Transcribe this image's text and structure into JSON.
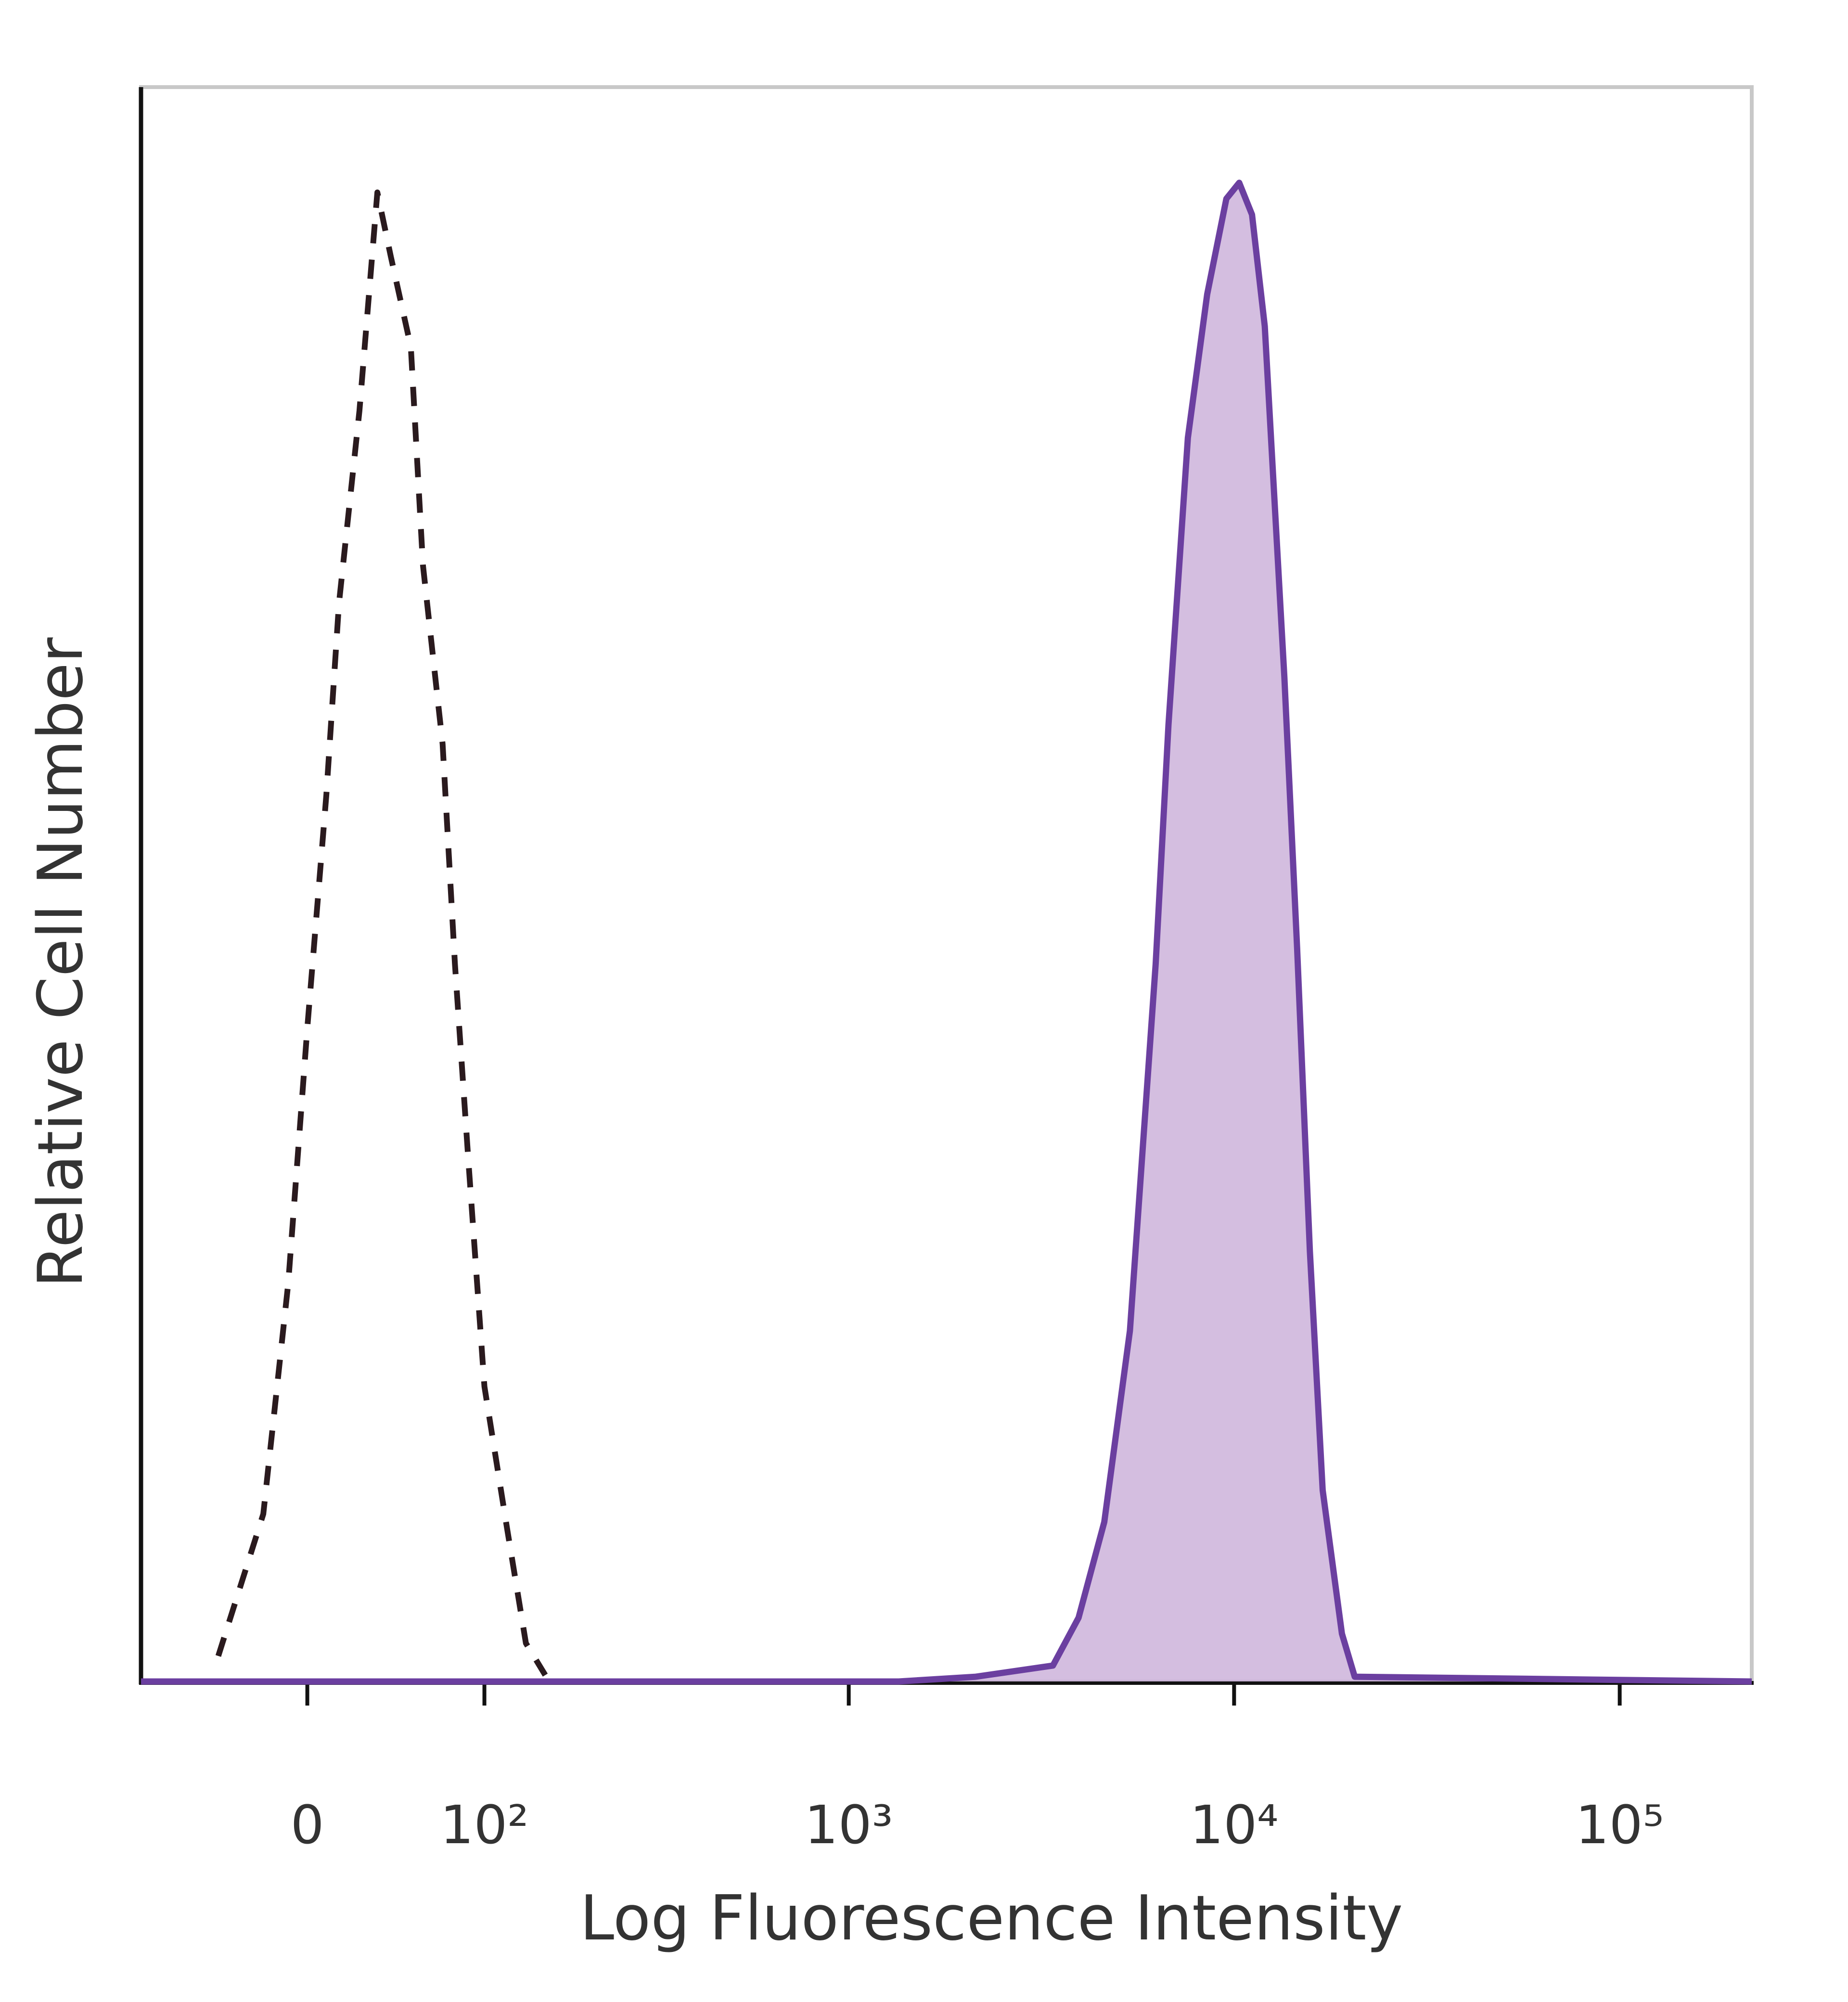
{
  "chart_data": {
    "type": "line",
    "xlabel": "Log Fluorescence Intensity",
    "ylabel": "Relative Cell Number",
    "xscale": "asinh",
    "xlim": [
      -92,
      220000
    ],
    "ylim": [
      0,
      100
    ],
    "xticks": [
      0,
      {
        "value": 100,
        "label": "10²"
      },
      {
        "value": 1000,
        "label": "10³"
      },
      {
        "value": 10000,
        "label": "10⁴"
      },
      {
        "value": 100000,
        "label": "10⁵"
      }
    ],
    "series": [
      {
        "color": "#2a1a1e",
        "dashed": true,
        "filled": false,
        "x": [
          -44,
          -21,
          -9,
          0,
          9,
          15,
          25,
          34,
          41,
          52,
          59,
          71,
          79,
          88,
          100,
          118,
          135,
          154
        ],
        "values": [
          1.6,
          10.5,
          25,
          41,
          55.6,
          67.6,
          79.7,
          93.4,
          89.4,
          83.7,
          70,
          58.8,
          45,
          33,
          18.5,
          9.7,
          2.4,
          0.4
        ]
      },
      {
        "color": "#6b3fa0",
        "dashed": false,
        "filled": true,
        "fill": "#cdb3da",
        "x": [
          -92,
          1349,
          2137,
          3389,
          3950,
          4606,
          5368,
          6260,
          6757,
          7587,
          8514,
          9550,
          10310,
          11130,
          12010,
          13500,
          14570,
          15720,
          16970,
          19040,
          20550,
          220000
        ],
        "values": [
          0,
          0,
          0.3,
          1,
          4,
          10,
          22,
          45,
          60,
          78,
          87,
          93,
          94,
          92,
          85,
          63,
          46,
          27,
          12,
          3,
          0.3,
          0
        ]
      }
    ]
  }
}
